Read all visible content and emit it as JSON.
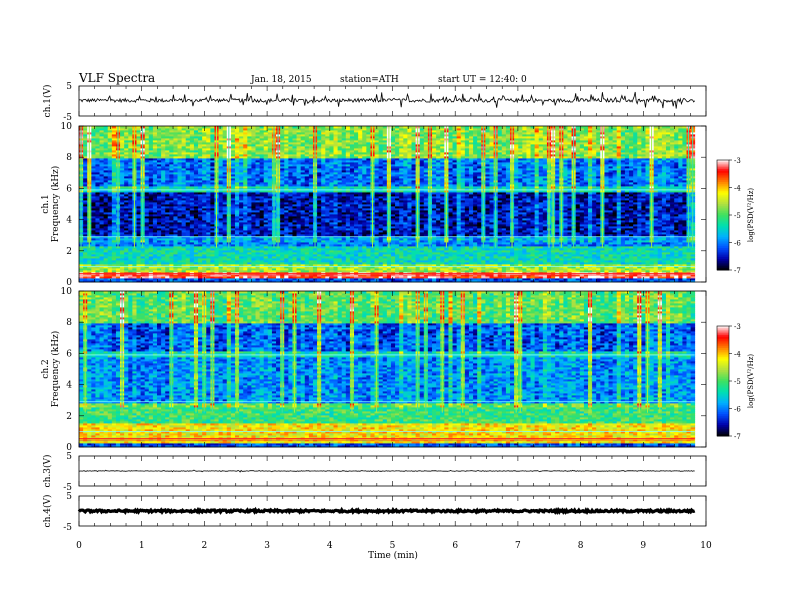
{
  "header": {
    "title": "VLF Spectra",
    "date": "Jan. 18, 2015",
    "station": "station=ATH",
    "start": "start UT =  12:40: 0"
  },
  "xaxis": {
    "label": "Time (min)",
    "ticks": [
      "0",
      "1",
      "2",
      "3",
      "4",
      "5",
      "6",
      "7",
      "8",
      "9",
      "10"
    ],
    "min": 0,
    "max": 10,
    "data_end": 9.82
  },
  "panels": {
    "ch1_wave": {
      "ylabel": "ch.1(V)",
      "ticks": [
        "5",
        "-5"
      ]
    },
    "ch1_spec": {
      "ylabel_top": "ch.1",
      "ylabel": "Frequency (kHz)",
      "ticks": [
        "10",
        "8",
        "6",
        "4",
        "2",
        "0"
      ]
    },
    "ch2_spec": {
      "ylabel_top": "ch.2",
      "ylabel": "Frequency (kHz)",
      "ticks": [
        "10",
        "8",
        "6",
        "4",
        "2",
        "0"
      ]
    },
    "ch3_wave": {
      "ylabel": "ch.3(V)",
      "ticks": [
        "5",
        "-5"
      ]
    },
    "ch4_wave": {
      "ylabel": "ch.4(V)",
      "ticks": [
        "5",
        "-5"
      ]
    }
  },
  "colorbar": {
    "label": "log(PSD(V²/Hz)",
    "ticks": [
      "-3",
      "-4",
      "-5",
      "-6",
      "-7"
    ],
    "colors": [
      "#000000",
      "#0000aa",
      "#0050ff",
      "#00b0ff",
      "#00e0b0",
      "#40e060",
      "#b0e040",
      "#ffff00",
      "#ff8000",
      "#ff0000",
      "#ffffff"
    ]
  },
  "chart_data": [
    {
      "type": "line",
      "name": "ch.1",
      "ylabel": "ch.1(V)",
      "ylim": [
        -5,
        5
      ],
      "xlim": [
        0,
        10
      ],
      "baseline": 0.2,
      "noise_amplitude": 0.6,
      "spike_amplitude": 1.6
    },
    {
      "type": "heatmap",
      "name": "ch.1",
      "xlabel": "Time (min)",
      "ylabel": "Frequency (kHz)",
      "ylim": [
        0,
        10
      ],
      "xlim": [
        0,
        9.82
      ],
      "zlabel": "log(PSD(V²/Hz)",
      "zlim": [
        -7,
        -3
      ],
      "bands": [
        {
          "f_min": 0.0,
          "f_max": 0.3,
          "logpsd": -6.2
        },
        {
          "f_min": 0.3,
          "f_max": 0.7,
          "logpsd": -3.3
        },
        {
          "f_min": 0.7,
          "f_max": 1.2,
          "logpsd": -4.6
        },
        {
          "f_min": 1.2,
          "f_max": 2.3,
          "logpsd": -5.4
        },
        {
          "f_min": 2.3,
          "f_max": 3.0,
          "logpsd": -6.0
        },
        {
          "f_min": 3.0,
          "f_max": 5.8,
          "logpsd": -6.7
        },
        {
          "f_min": 5.8,
          "f_max": 6.1,
          "logpsd": -5.6
        },
        {
          "f_min": 6.1,
          "f_max": 8.0,
          "logpsd": -6.3
        },
        {
          "f_min": 8.0,
          "f_max": 10.0,
          "logpsd": -5.0
        }
      ]
    },
    {
      "type": "heatmap",
      "name": "ch.2",
      "xlabel": "Time (min)",
      "ylabel": "Frequency (kHz)",
      "ylim": [
        0,
        10
      ],
      "xlim": [
        0,
        9.82
      ],
      "zlabel": "log(PSD(V²/Hz)",
      "zlim": [
        -7,
        -3
      ],
      "bands": [
        {
          "f_min": 0.0,
          "f_max": 0.3,
          "logpsd": -6.2
        },
        {
          "f_min": 0.3,
          "f_max": 1.5,
          "logpsd": -4.2
        },
        {
          "f_min": 1.5,
          "f_max": 2.8,
          "logpsd": -5.1
        },
        {
          "f_min": 2.8,
          "f_max": 5.8,
          "logpsd": -6.1
        },
        {
          "f_min": 5.8,
          "f_max": 6.1,
          "logpsd": -5.6
        },
        {
          "f_min": 6.1,
          "f_max": 8.0,
          "logpsd": -6.4
        },
        {
          "f_min": 8.0,
          "f_max": 10.0,
          "logpsd": -5.2
        }
      ]
    },
    {
      "type": "line",
      "name": "ch.3",
      "ylabel": "ch.3(V)",
      "ylim": [
        -5,
        5
      ],
      "xlim": [
        0,
        10
      ],
      "baseline": 0.0,
      "noise_amplitude": 0.1,
      "spike_amplitude": 0.2
    },
    {
      "type": "line",
      "name": "ch.4",
      "ylabel": "ch.4(V)",
      "ylim": [
        -5,
        5
      ],
      "xlim": [
        0,
        10
      ],
      "baseline": 0.0,
      "noise_amplitude": 0.35,
      "spike_amplitude": 0.0
    }
  ]
}
